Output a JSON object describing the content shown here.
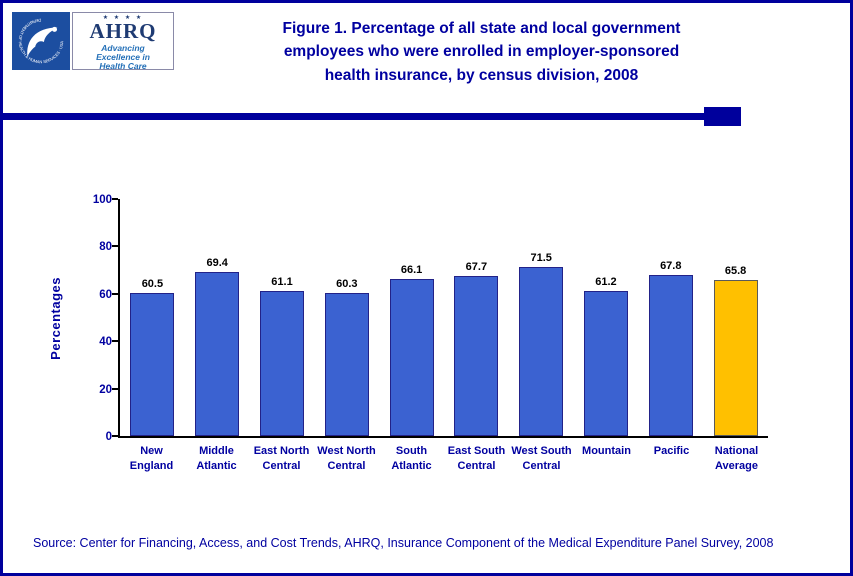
{
  "header": {
    "hhs_logo": {
      "ring_text": "DEPARTMENT OF HEALTH & HUMAN SERVICES · USA"
    },
    "ahrq_logo": {
      "stars": "★ ★ ★ ★",
      "name": "AHRQ",
      "tagline_lines": [
        "Advancing",
        "Excellence in",
        "Health Care"
      ]
    },
    "title_lines": [
      "Figure 1. Percentage of all state and local government",
      "employees who were enrolled in employer-sponsored",
      "health insurance, by census division, 2008"
    ]
  },
  "chart_data": {
    "type": "bar",
    "title": "Figure 1. Percentage of all state and local government employees who were enrolled in employer-sponsored health insurance, by census division, 2008",
    "categories": [
      "New England",
      "Middle Atlantic",
      "East North Central",
      "West North Central",
      "South Atlantic",
      "East South Central",
      "West South Central",
      "Mountain",
      "Pacific",
      "National Average"
    ],
    "values": [
      60.5,
      69.4,
      61.1,
      60.3,
      66.1,
      67.7,
      71.5,
      61.2,
      67.8,
      65.8
    ],
    "value_labels": [
      "60.5",
      "69.4",
      "61.1",
      "60.3",
      "66.1",
      "67.7",
      "71.5",
      "61.2",
      "67.8",
      "65.8"
    ],
    "xlabel": "",
    "ylabel": "Percentages",
    "ylim": [
      0,
      100
    ],
    "yticks": [
      0,
      20,
      40,
      60,
      80,
      100
    ],
    "grid": false,
    "legend": false,
    "bar_color": "#3B62D1",
    "bar_border_color": "#222288",
    "highlight": {
      "index": 9,
      "color": "#FFC000",
      "border_color": "#5a5a5a"
    }
  },
  "footer": {
    "source": "Source: Center for Financing, Access, and Cost Trends, AHRQ, Insurance Component of the Medical Expenditure Panel Survey, 2008"
  }
}
